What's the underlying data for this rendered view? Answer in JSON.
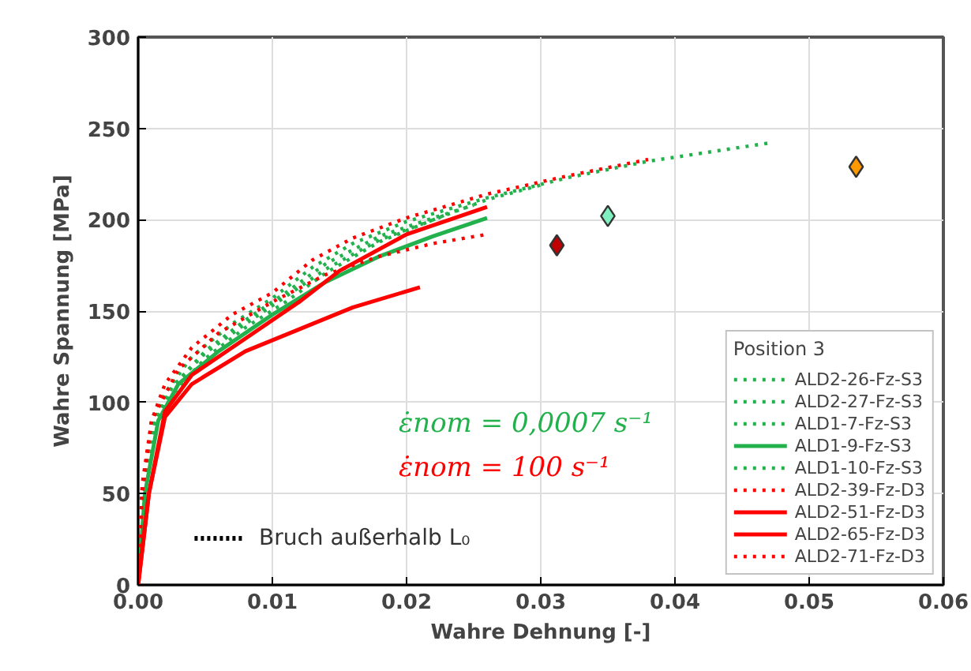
{
  "chart_data": {
    "type": "line",
    "xlabel": "Wahre Dehnung [-]",
    "ylabel": "Wahre Spannung [MPa]",
    "legend_title": "Position 3",
    "xlim": [
      0,
      0.06
    ],
    "ylim": [
      0,
      300
    ],
    "xticks": [
      {
        "value": 0,
        "label": "0.00"
      },
      0.01,
      0.02,
      0.03,
      0.04,
      0.05,
      0.06
    ],
    "yticks": [
      0,
      50,
      100,
      150,
      200,
      250,
      300
    ],
    "grid": true,
    "legend": "bottom right",
    "annotations": [
      "ε̇nom = 0,0007 s⁻¹",
      "ε̇nom = 100 s⁻¹",
      "Bruch außerhalb L₀"
    ],
    "series": [
      {
        "name": "ALD2-26-Fz-S3",
        "color": "#22b14c",
        "line_style": "dotted",
        "x": [
          0,
          0.0003,
          0.001,
          0.002,
          0.004,
          0.007,
          0.01,
          0.013,
          0.016,
          0.02,
          0.026,
          0.032,
          0.038,
          0.047
        ],
        "values": [
          0,
          50,
          85,
          105,
          125,
          143,
          157,
          174,
          187,
          199,
          212,
          223,
          232,
          242
        ]
      },
      {
        "name": "ALD2-27-Fz-S3",
        "color": "#22b14c",
        "line_style": "dotted",
        "x": [
          0,
          0.0004,
          0.0012,
          0.0025,
          0.005,
          0.008,
          0.011,
          0.014,
          0.018,
          0.022,
          0.025
        ],
        "values": [
          0,
          50,
          88,
          108,
          128,
          145,
          160,
          176,
          191,
          201,
          208
        ]
      },
      {
        "name": "ALD1-7-Fz-S3",
        "color": "#22b14c",
        "line_style": "dotted",
        "x": [
          0,
          0.0004,
          0.0012,
          0.0025,
          0.005,
          0.008,
          0.011,
          0.014,
          0.018,
          0.023
        ],
        "values": [
          0,
          48,
          85,
          104,
          124,
          141,
          155,
          171,
          188,
          203
        ]
      },
      {
        "name": "ALD1-9-Fz-S3",
        "color": "#22b14c",
        "line_style": "solid",
        "x": [
          0,
          0.0005,
          0.0015,
          0.003,
          0.006,
          0.01,
          0.014,
          0.018,
          0.022,
          0.026
        ],
        "values": [
          0,
          50,
          90,
          110,
          128,
          148,
          166,
          180,
          191,
          201
        ]
      },
      {
        "name": "ALD1-10-Fz-S3",
        "color": "#22b14c",
        "line_style": "dotted",
        "x": [
          0,
          0.0004,
          0.0012,
          0.0025,
          0.005,
          0.008,
          0.011,
          0.014,
          0.018,
          0.022,
          0.026,
          0.03
        ],
        "values": [
          0,
          52,
          88,
          108,
          127,
          143,
          158,
          173,
          189,
          200,
          211,
          219
        ]
      },
      {
        "name": "ALD2-39-Fz-D3",
        "color": "#ff0000",
        "line_style": "dotted",
        "x": [
          0,
          0.0003,
          0.001,
          0.002,
          0.004,
          0.007,
          0.01,
          0.013,
          0.016,
          0.02,
          0.026,
          0.032,
          0.038
        ],
        "values": [
          0,
          55,
          90,
          110,
          130,
          148,
          160,
          178,
          190,
          201,
          214,
          224,
          233
        ]
      },
      {
        "name": "ALD2-51-Fz-D3",
        "color": "#ff0000",
        "line_style": "solid",
        "x": [
          0,
          0.0008,
          0.002,
          0.004,
          0.008,
          0.012,
          0.015,
          0.02,
          0.026
        ],
        "values": [
          0,
          50,
          95,
          115,
          135,
          155,
          172,
          192,
          207
        ]
      },
      {
        "name": "ALD2-65-Fz-D3",
        "color": "#ff0000",
        "line_style": "solid",
        "x": [
          0,
          0.0008,
          0.002,
          0.004,
          0.008,
          0.012,
          0.016,
          0.021
        ],
        "values": [
          0,
          50,
          92,
          110,
          128,
          140,
          152,
          163
        ]
      },
      {
        "name": "ALD2-71-Fz-D3",
        "color": "#ff0000",
        "line_style": "dotted",
        "x": [
          0,
          0.0003,
          0.001,
          0.003,
          0.006,
          0.01,
          0.014,
          0.018,
          0.022,
          0.026
        ],
        "values": [
          0,
          50,
          90,
          118,
          138,
          155,
          170,
          180,
          187,
          192
        ]
      },
      {
        "type": "scatter",
        "marker": "diamond",
        "color": "#c00000",
        "x": [
          0.0312
        ],
        "values": [
          186
        ]
      },
      {
        "type": "scatter",
        "marker": "diamond",
        "color": "#80f0c0",
        "x": [
          0.035
        ],
        "values": [
          202
        ]
      },
      {
        "type": "scatter",
        "marker": "diamond",
        "color": "#ff9900",
        "x": [
          0.0535
        ],
        "values": [
          229
        ]
      }
    ]
  }
}
